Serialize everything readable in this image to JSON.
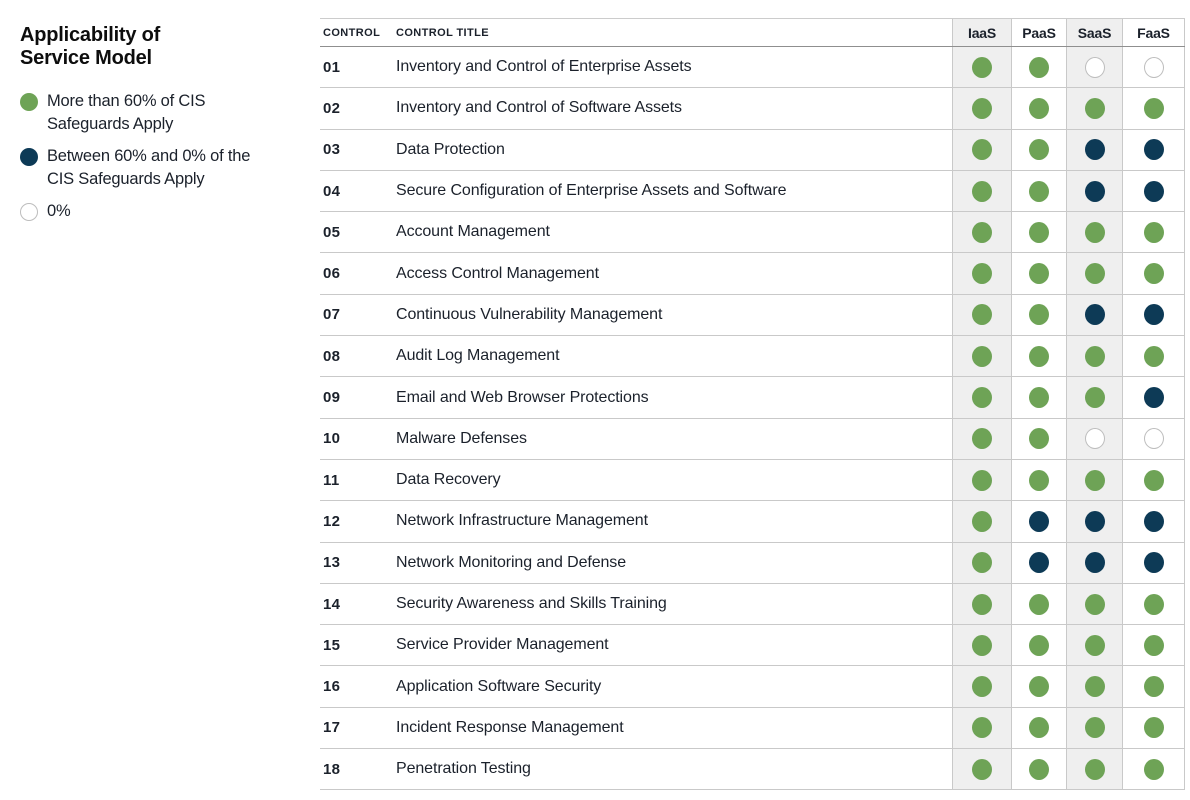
{
  "page": {
    "background": "#ffffff"
  },
  "colors": {
    "green": "#6ea356",
    "navy": "#0d3a56",
    "empty_circle_border": "#bdbdbd",
    "column_shade": "#efefef",
    "row_border": "#c9c9c9",
    "header_border": "#8f8f8f",
    "text": "#1b212b"
  },
  "legend": {
    "title": "Applicability of\nService Model",
    "items": [
      {
        "type": "green",
        "label": "More than 60% of CIS\nSafeguards Apply"
      },
      {
        "type": "navy",
        "label": "Between 60% and 0% of the\nCIS Safeguards Apply"
      },
      {
        "type": "none",
        "label": "0%"
      }
    ]
  },
  "table": {
    "col_control": "CONTROL",
    "col_title": "CONTROL TITLE",
    "service_columns": [
      "IaaS",
      "PaaS",
      "SaaS",
      "FaaS"
    ],
    "rows": [
      {
        "number": "01",
        "title": "Inventory and Control of Enterprise Assets",
        "values": [
          "green",
          "green",
          "none",
          "none"
        ]
      },
      {
        "number": "02",
        "title": "Inventory and Control of Software Assets",
        "values": [
          "green",
          "green",
          "green",
          "green"
        ]
      },
      {
        "number": "03",
        "title": "Data Protection",
        "values": [
          "green",
          "green",
          "navy",
          "navy"
        ]
      },
      {
        "number": "04",
        "title": "Secure Configuration of Enterprise Assets and Software",
        "values": [
          "green",
          "green",
          "navy",
          "navy"
        ]
      },
      {
        "number": "05",
        "title": "Account Management",
        "values": [
          "green",
          "green",
          "green",
          "green"
        ]
      },
      {
        "number": "06",
        "title": "Access Control Management",
        "values": [
          "green",
          "green",
          "green",
          "green"
        ]
      },
      {
        "number": "07",
        "title": "Continuous Vulnerability Management",
        "values": [
          "green",
          "green",
          "navy",
          "navy"
        ]
      },
      {
        "number": "08",
        "title": "Audit Log Management",
        "values": [
          "green",
          "green",
          "green",
          "green"
        ]
      },
      {
        "number": "09",
        "title": "Email and Web Browser Protections",
        "values": [
          "green",
          "green",
          "green",
          "navy"
        ]
      },
      {
        "number": "10",
        "title": "Malware Defenses",
        "values": [
          "green",
          "green",
          "none",
          "none"
        ]
      },
      {
        "number": "11",
        "title": "Data Recovery",
        "values": [
          "green",
          "green",
          "green",
          "green"
        ]
      },
      {
        "number": "12",
        "title": "Network Infrastructure Management",
        "values": [
          "green",
          "navy",
          "navy",
          "navy"
        ]
      },
      {
        "number": "13",
        "title": "Network Monitoring and Defense",
        "values": [
          "green",
          "navy",
          "navy",
          "navy"
        ]
      },
      {
        "number": "14",
        "title": "Security Awareness and Skills Training",
        "values": [
          "green",
          "green",
          "green",
          "green"
        ]
      },
      {
        "number": "15",
        "title": "Service Provider Management",
        "values": [
          "green",
          "green",
          "green",
          "green"
        ]
      },
      {
        "number": "16",
        "title": "Application Software Security",
        "values": [
          "green",
          "green",
          "green",
          "green"
        ]
      },
      {
        "number": "17",
        "title": "Incident Response Management",
        "values": [
          "green",
          "green",
          "green",
          "green"
        ]
      },
      {
        "number": "18",
        "title": "Penetration Testing",
        "values": [
          "green",
          "green",
          "green",
          "green"
        ]
      }
    ]
  },
  "chart_data": {
    "type": "table",
    "title": "Applicability of Service Model",
    "columns": [
      "Control",
      "Control Title",
      "IaaS",
      "PaaS",
      "SaaS",
      "FaaS"
    ],
    "legend": {
      "green": "More than 60% of CIS Safeguards Apply",
      "navy": "Between 60% and 0% of the CIS Safeguards Apply",
      "none": "0%"
    },
    "rows": [
      [
        "01",
        "Inventory and Control of Enterprise Assets",
        "green",
        "green",
        "none",
        "none"
      ],
      [
        "02",
        "Inventory and Control of Software Assets",
        "green",
        "green",
        "green",
        "green"
      ],
      [
        "03",
        "Data Protection",
        "green",
        "green",
        "navy",
        "navy"
      ],
      [
        "04",
        "Secure Configuration of Enterprise Assets and Software",
        "green",
        "green",
        "navy",
        "navy"
      ],
      [
        "05",
        "Account Management",
        "green",
        "green",
        "green",
        "green"
      ],
      [
        "06",
        "Access Control Management",
        "green",
        "green",
        "green",
        "green"
      ],
      [
        "07",
        "Continuous Vulnerability Management",
        "green",
        "green",
        "navy",
        "navy"
      ],
      [
        "08",
        "Audit Log Management",
        "green",
        "green",
        "green",
        "green"
      ],
      [
        "09",
        "Email and Web Browser Protections",
        "green",
        "green",
        "green",
        "navy"
      ],
      [
        "10",
        "Malware Defenses",
        "green",
        "green",
        "none",
        "none"
      ],
      [
        "11",
        "Data Recovery",
        "green",
        "green",
        "green",
        "green"
      ],
      [
        "12",
        "Network Infrastructure Management",
        "green",
        "navy",
        "navy",
        "navy"
      ],
      [
        "13",
        "Network Monitoring and Defense",
        "green",
        "navy",
        "navy",
        "navy"
      ],
      [
        "14",
        "Security Awareness and Skills Training",
        "green",
        "green",
        "green",
        "green"
      ],
      [
        "15",
        "Service Provider Management",
        "green",
        "green",
        "green",
        "green"
      ],
      [
        "16",
        "Application Software Security",
        "green",
        "green",
        "green",
        "green"
      ],
      [
        "17",
        "Incident Response Management",
        "green",
        "green",
        "green",
        "green"
      ],
      [
        "18",
        "Penetration Testing",
        "green",
        "green",
        "green",
        "green"
      ]
    ]
  }
}
